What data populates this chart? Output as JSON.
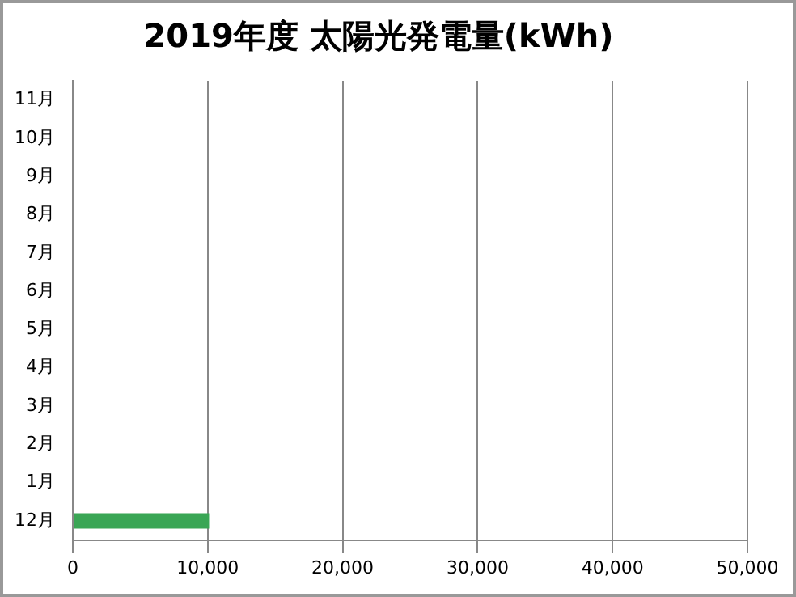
{
  "chart_data": {
    "type": "bar",
    "orientation": "horizontal",
    "title": "2019年度 太陽光発電量(kWh)",
    "categories": [
      "11月",
      "10月",
      "9月",
      "8月",
      "7月",
      "6月",
      "5月",
      "4月",
      "3月",
      "2月",
      "1月",
      "12月"
    ],
    "values": [
      0,
      0,
      0,
      0,
      0,
      0,
      0,
      0,
      0,
      0,
      0,
      10100
    ],
    "color": "#3aa655",
    "xlim": [
      0,
      50000
    ],
    "xticks": [
      {
        "value": 0,
        "label": "0"
      },
      {
        "value": 10000,
        "label": "10,000"
      },
      {
        "value": 20000,
        "label": "20,000"
      },
      {
        "value": 30000,
        "label": "30,000"
      },
      {
        "value": 40000,
        "label": "40,000"
      },
      {
        "value": 50000,
        "label": "50,000"
      }
    ],
    "grid": "x"
  }
}
